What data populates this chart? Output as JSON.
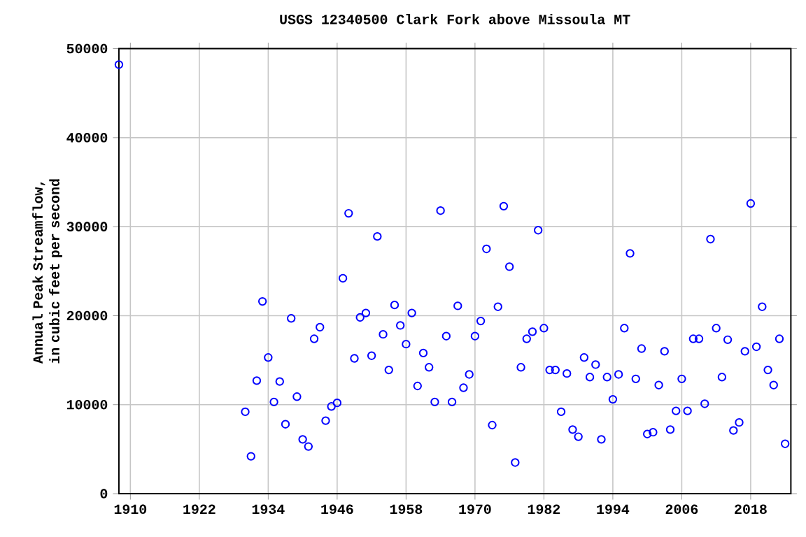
{
  "chart_data": {
    "type": "scatter",
    "title": "USGS 12340500 Clark Fork above Missoula MT",
    "ylabel": "Annual Peak Streamflow, in cubic feet per second",
    "x": [
      1908,
      1930,
      1931,
      1932,
      1933,
      1934,
      1935,
      1936,
      1937,
      1938,
      1939,
      1940,
      1941,
      1942,
      1943,
      1944,
      1945,
      1946,
      1947,
      1948,
      1949,
      1950,
      1951,
      1952,
      1953,
      1954,
      1955,
      1956,
      1957,
      1958,
      1959,
      1960,
      1961,
      1962,
      1963,
      1964,
      1965,
      1966,
      1967,
      1968,
      1969,
      1970,
      1971,
      1972,
      1973,
      1974,
      1975,
      1976,
      1977,
      1978,
      1979,
      1980,
      1981,
      1982,
      1983,
      1984,
      1985,
      1986,
      1987,
      1988,
      1989,
      1990,
      1991,
      1992,
      1993,
      1994,
      1995,
      1996,
      1997,
      1998,
      1999,
      2000,
      2001,
      2002,
      2003,
      2004,
      2005,
      2006,
      2007,
      2008,
      2009,
      2010,
      2011,
      2012,
      2013,
      2014,
      2015,
      2016,
      2017,
      2018,
      2019,
      2020,
      2021,
      2022,
      2023,
      2024
    ],
    "values": [
      48200,
      9200,
      4200,
      12700,
      21600,
      15300,
      10300,
      12600,
      7800,
      19700,
      10900,
      6100,
      5300,
      17400,
      18700,
      8200,
      9800,
      10200,
      24200,
      31500,
      15200,
      19800,
      20300,
      15500,
      28900,
      17900,
      13900,
      21200,
      18900,
      16800,
      20300,
      12100,
      15800,
      14200,
      10300,
      31800,
      17700,
      10300,
      21100,
      11900,
      13400,
      17700,
      19400,
      27500,
      7700,
      21000,
      32300,
      25500,
      3500,
      14200,
      17400,
      18200,
      29600,
      18600,
      13900,
      13900,
      9200,
      13500,
      7200,
      6400,
      15300,
      13100,
      14500,
      6100,
      13100,
      10600,
      13400,
      18600,
      27000,
      12900,
      16300,
      6700,
      6900,
      12200,
      16000,
      7200,
      9300,
      12900,
      9300,
      17400,
      17400,
      10100,
      28600,
      18600,
      13100,
      17300,
      7100,
      8000,
      16000,
      32600,
      16500,
      21000,
      13900,
      12200,
      17400,
      5600
    ],
    "color": "#0000ff",
    "marker": "circle",
    "grid": true,
    "xlim": [
      1908,
      2025
    ],
    "ylim": [
      0,
      50000
    ],
    "xticks": [
      1910,
      1922,
      1934,
      1946,
      1958,
      1970,
      1982,
      1994,
      2006,
      2018
    ],
    "yticks": [
      0,
      10000,
      20000,
      30000,
      40000,
      50000
    ]
  }
}
